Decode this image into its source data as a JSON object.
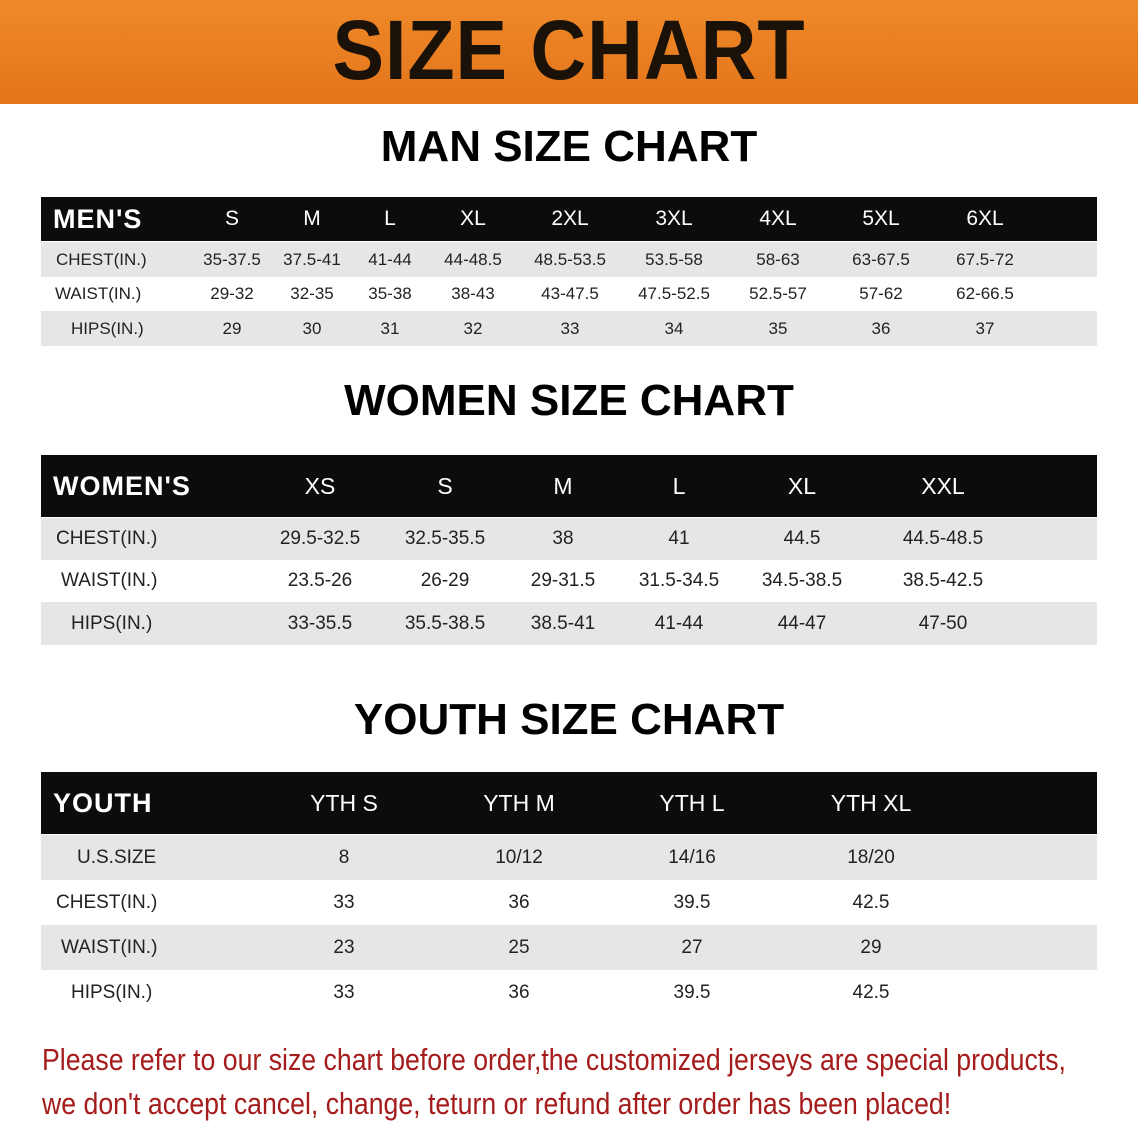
{
  "banner_title": "SIZE CHART",
  "colors": {
    "banner": "#e8781a",
    "header_row": "#0c0c0c",
    "stripe": "#e6e6e6",
    "notice": "#a51c1c"
  },
  "men": {
    "title": "MAN SIZE CHART",
    "header": [
      "MEN'S",
      "S",
      "M",
      "L",
      "XL",
      "2XL",
      "3XL",
      "4XL",
      "5XL",
      "6XL"
    ],
    "rows": [
      [
        "CHEST(IN.)",
        "35-37.5",
        "37.5-41",
        "41-44",
        "44-48.5",
        "48.5-53.5",
        "53.5-58",
        "58-63",
        "63-67.5",
        "67.5-72"
      ],
      [
        "WAIST(IN.)",
        "29-32",
        "32-35",
        "35-38",
        "38-43",
        "43-47.5",
        "47.5-52.5",
        "52.5-57",
        "57-62",
        "62-66.5"
      ],
      [
        "HIPS(IN.)",
        "29",
        "30",
        "31",
        "32",
        "33",
        "34",
        "35",
        "36",
        "37"
      ]
    ]
  },
  "women": {
    "title": "WOMEN SIZE CHART",
    "header": [
      "WOMEN'S",
      "XS",
      "S",
      "M",
      "L",
      "XL",
      "XXL"
    ],
    "rows": [
      [
        "CHEST(IN.)",
        "29.5-32.5",
        "32.5-35.5",
        "38",
        "41",
        "44.5",
        "44.5-48.5"
      ],
      [
        "WAIST(IN.)",
        "23.5-26",
        "26-29",
        "29-31.5",
        "31.5-34.5",
        "34.5-38.5",
        "38.5-42.5"
      ],
      [
        "HIPS(IN.)",
        "33-35.5",
        "35.5-38.5",
        "38.5-41",
        "41-44",
        "44-47",
        "47-50"
      ]
    ]
  },
  "youth": {
    "title": "YOUTH SIZE CHART",
    "header": [
      "YOUTH",
      "YTH S",
      "YTH M",
      "YTH L",
      "YTH XL"
    ],
    "rows": [
      [
        "U.S.SIZE",
        "8",
        "10/12",
        "14/16",
        "18/20"
      ],
      [
        "CHEST(IN.)",
        "33",
        "36",
        "39.5",
        "42.5"
      ],
      [
        "WAIST(IN.)",
        "23",
        "25",
        "27",
        "29"
      ],
      [
        "HIPS(IN.)",
        "33",
        "36",
        "39.5",
        "42.5"
      ]
    ]
  },
  "notice": [
    "Please refer to our size chart before order,the customized jerseys are special products,",
    "we don't accept cancel, change, teturn or refund after order has been placed!"
  ]
}
